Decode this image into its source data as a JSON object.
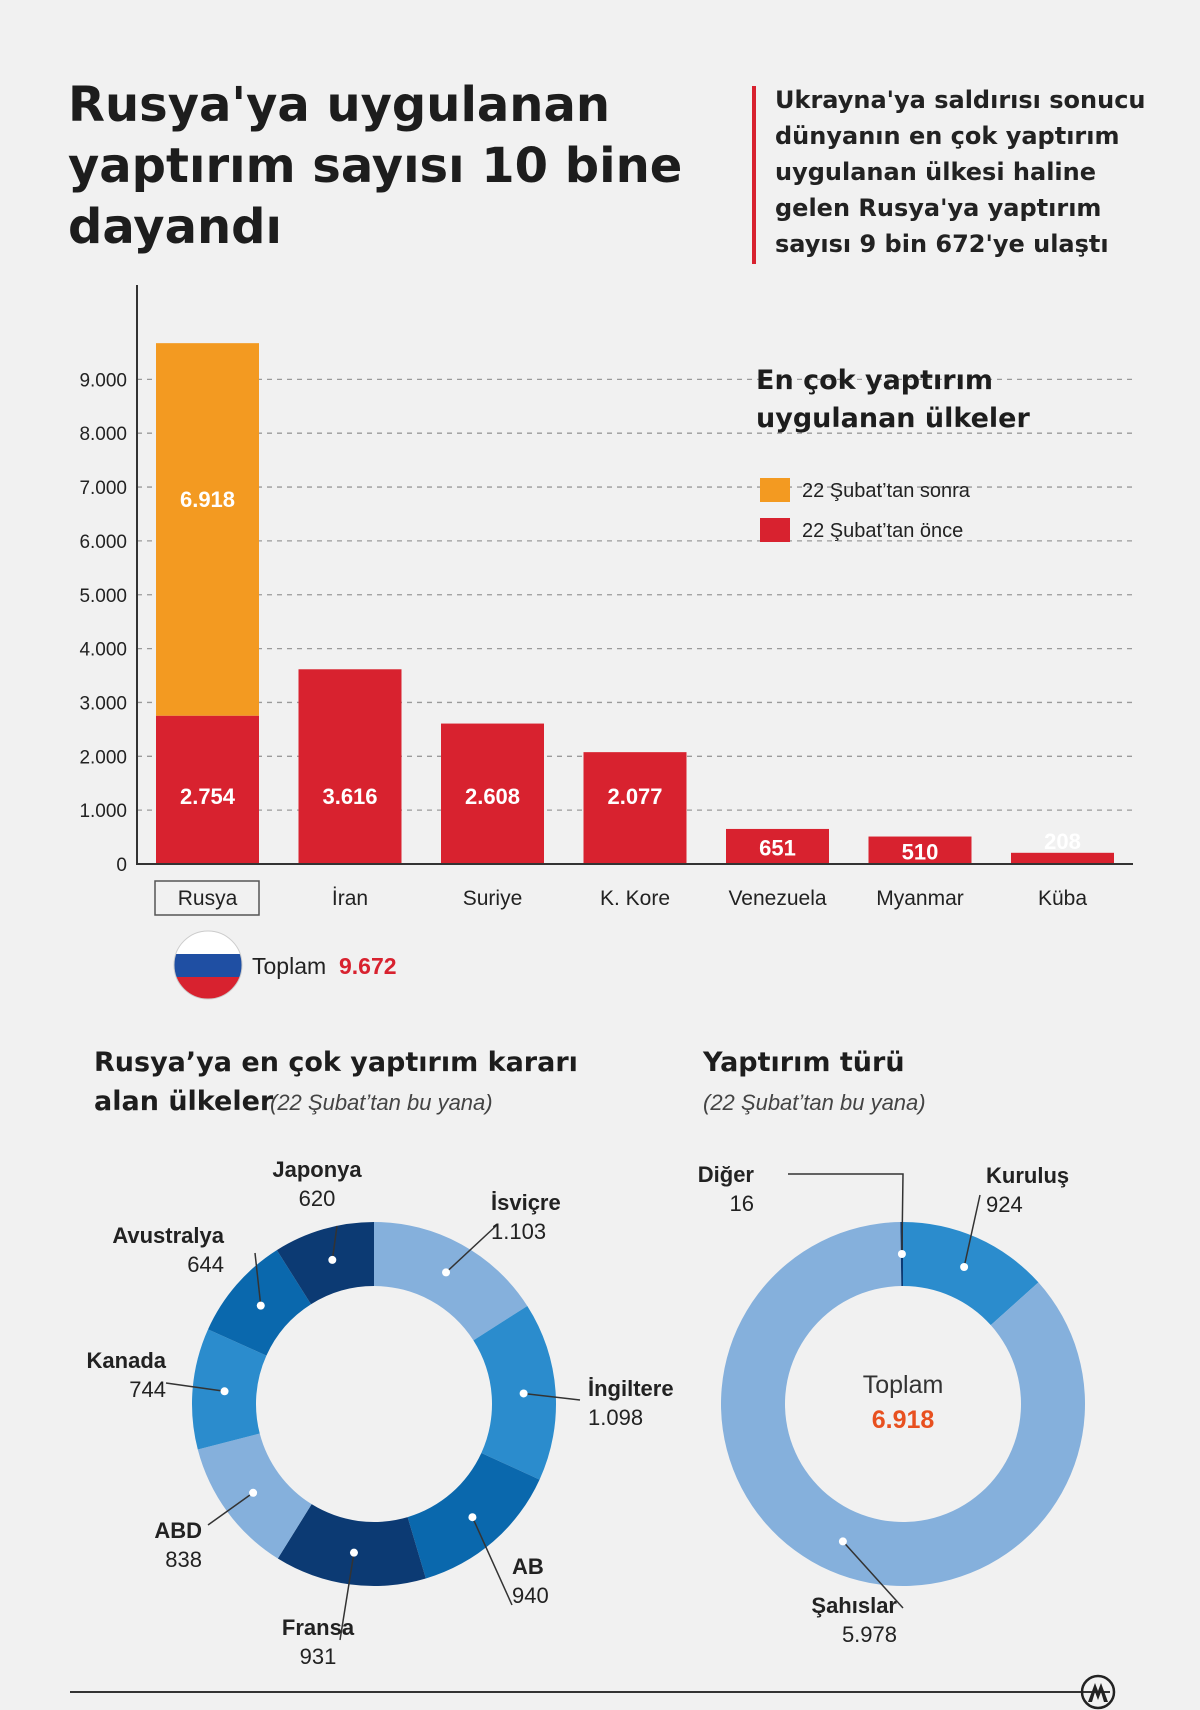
{
  "header": {
    "title": "Rusya'ya uygulanan yaptırım sayısı 10 bine dayandı",
    "intro": "Ukrayna'ya saldırısı sonucu dünyanın en çok yaptırım uygulanan ülkesi haline gelen Rusya'ya yaptırım sayısı 9 bin 672'ye ulaştı"
  },
  "bar_panel": {
    "title_line1": "En çok yaptırım",
    "title_line2": "uygulanan ülkeler",
    "total_label": "Toplam",
    "total_value": "9.672",
    "y_tick_labels": [
      "0",
      "1.000",
      "2.000",
      "3.000",
      "4.000",
      "5.000",
      "6.000",
      "7.000",
      "8.000",
      "9.000"
    ]
  },
  "pie1_panel": {
    "title_line1": "Rusya’ya en çok yaptırım kararı",
    "title_line2": "alan ülkeler",
    "subtitle": "(22 Şubat’tan bu yana)"
  },
  "pie2_panel": {
    "title": "Yaptırım türü",
    "subtitle": "(22 Şubat’tan bu yana)",
    "center_label": "Toplam",
    "center_value": "6.918"
  },
  "chart_data": [
    {
      "type": "bar",
      "categories": [
        "Rusya",
        "İran",
        "Suriye",
        "K. Kore",
        "Venezuela",
        "Myanmar",
        "Küba"
      ],
      "series": [
        {
          "name": "22 Şubat’tan önce",
          "color": "#d8222f",
          "values": [
            2754,
            3616,
            2608,
            2077,
            651,
            510,
            208
          ],
          "labels": [
            "2.754",
            "3.616",
            "2.608",
            "2.077",
            "651",
            "510",
            "208"
          ]
        },
        {
          "name": "22 Şubat’tan sonra",
          "color": "#f39a21",
          "values": [
            6918,
            0,
            0,
            0,
            0,
            0,
            0
          ],
          "labels": [
            "6.918",
            "",
            "",
            "",
            "",
            "",
            ""
          ]
        }
      ],
      "stacked": true,
      "ylim": [
        0,
        9700
      ],
      "grid": true,
      "legend": "right"
    },
    {
      "type": "pie",
      "style": "donut",
      "slices": [
        {
          "label": "İsviçre",
          "value": 1103,
          "display": "1.103",
          "color": "#85b0dc"
        },
        {
          "label": "İngiltere",
          "value": 1098,
          "display": "1.098",
          "color": "#2b8ccd"
        },
        {
          "label": "AB",
          "value": 940,
          "display": "940",
          "color": "#0a68ad"
        },
        {
          "label": "Fransa",
          "value": 931,
          "display": "931",
          "color": "#0c3a73"
        },
        {
          "label": "ABD",
          "value": 838,
          "display": "838",
          "color": "#85b0dc"
        },
        {
          "label": "Kanada",
          "value": 744,
          "display": "744",
          "color": "#2b8ccd"
        },
        {
          "label": "Avustralya",
          "value": 644,
          "display": "644",
          "color": "#0a68ad"
        },
        {
          "label": "Japonya",
          "value": 620,
          "display": "620",
          "color": "#0c3a73"
        }
      ]
    },
    {
      "type": "pie",
      "style": "donut",
      "slices": [
        {
          "label": "Kuruluş",
          "value": 924,
          "display": "924",
          "color": "#2b8ccd"
        },
        {
          "label": "Şahıslar",
          "value": 5978,
          "display": "5.978",
          "color": "#85b0dc"
        },
        {
          "label": "Diğer",
          "value": 16,
          "display": "16",
          "color": "#0c3a73"
        }
      ]
    }
  ]
}
